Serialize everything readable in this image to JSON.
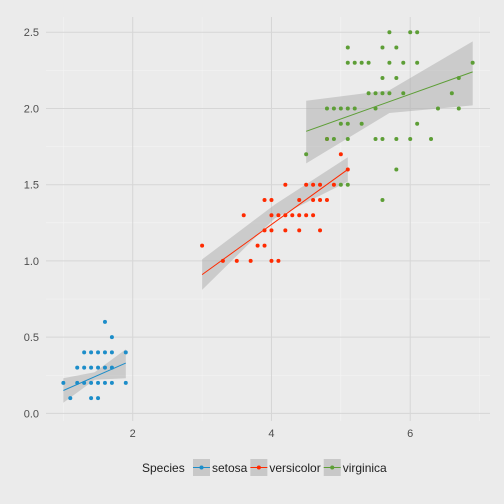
{
  "chart_data": {
    "type": "scatter",
    "xlim": [
      0.75,
      7.15
    ],
    "ylim": [
      -0.05,
      2.6
    ],
    "x_ticks": [
      2,
      4,
      6
    ],
    "x_tick_labels": [
      "2",
      "4",
      "6"
    ],
    "y_ticks": [
      0.0,
      0.5,
      1.0,
      1.5,
      2.0,
      2.5
    ],
    "y_tick_labels": [
      "0.0",
      "0.5",
      "1.0",
      "1.5",
      "2.0",
      "2.5"
    ],
    "grid": true,
    "legend_position": "bottom",
    "legend_title": "Species",
    "series": [
      {
        "name": "setosa",
        "color": "#1c8dc9",
        "fit": [
          [
            1.0,
            0.15
          ],
          [
            1.9,
            0.33
          ]
        ],
        "band": {
          "x": [
            1.0,
            1.45,
            1.9
          ],
          "lower": [
            0.07,
            0.22,
            0.23
          ],
          "upper": [
            0.23,
            0.27,
            0.42
          ]
        },
        "points": [
          [
            1.0,
            0.2
          ],
          [
            1.1,
            0.1
          ],
          [
            1.2,
            0.2
          ],
          [
            1.3,
            0.2
          ],
          [
            1.3,
            0.3
          ],
          [
            1.3,
            0.4
          ],
          [
            1.4,
            0.1
          ],
          [
            1.4,
            0.2
          ],
          [
            1.4,
            0.3
          ],
          [
            1.5,
            0.1
          ],
          [
            1.5,
            0.2
          ],
          [
            1.5,
            0.3
          ],
          [
            1.5,
            0.4
          ],
          [
            1.6,
            0.2
          ],
          [
            1.6,
            0.4
          ],
          [
            1.6,
            0.6
          ],
          [
            1.7,
            0.2
          ],
          [
            1.7,
            0.3
          ],
          [
            1.7,
            0.4
          ],
          [
            1.7,
            0.5
          ],
          [
            1.9,
            0.2
          ],
          [
            1.9,
            0.4
          ],
          [
            1.2,
            0.3
          ],
          [
            1.4,
            0.4
          ],
          [
            1.6,
            0.3
          ]
        ]
      },
      {
        "name": "versicolor",
        "color": "#ff2a00",
        "fit": [
          [
            3.0,
            0.91
          ],
          [
            5.1,
            1.6
          ]
        ],
        "band": {
          "x": [
            3.0,
            4.05,
            5.1
          ],
          "lower": [
            0.81,
            1.28,
            1.52
          ],
          "upper": [
            1.01,
            1.37,
            1.68
          ]
        },
        "points": [
          [
            3.0,
            1.1
          ],
          [
            3.3,
            1.0
          ],
          [
            3.5,
            1.0
          ],
          [
            3.6,
            1.3
          ],
          [
            3.7,
            1.0
          ],
          [
            3.8,
            1.1
          ],
          [
            3.9,
            1.1
          ],
          [
            3.9,
            1.2
          ],
          [
            3.9,
            1.4
          ],
          [
            4.0,
            1.0
          ],
          [
            4.0,
            1.2
          ],
          [
            4.0,
            1.3
          ],
          [
            4.1,
            1.0
          ],
          [
            4.1,
            1.3
          ],
          [
            4.2,
            1.2
          ],
          [
            4.2,
            1.3
          ],
          [
            4.2,
            1.5
          ],
          [
            4.3,
            1.3
          ],
          [
            4.4,
            1.2
          ],
          [
            4.4,
            1.3
          ],
          [
            4.4,
            1.4
          ],
          [
            4.5,
            1.3
          ],
          [
            4.5,
            1.5
          ],
          [
            4.6,
            1.3
          ],
          [
            4.6,
            1.4
          ],
          [
            4.6,
            1.5
          ],
          [
            4.7,
            1.2
          ],
          [
            4.7,
            1.4
          ],
          [
            4.7,
            1.5
          ],
          [
            4.8,
            1.4
          ],
          [
            4.8,
            1.8
          ],
          [
            4.9,
            1.5
          ],
          [
            5.0,
            1.7
          ],
          [
            5.1,
            1.6
          ],
          [
            4.0,
            1.4
          ]
        ]
      },
      {
        "name": "virginica",
        "color": "#5d9e36",
        "fit": [
          [
            4.5,
            1.85
          ],
          [
            6.9,
            2.24
          ]
        ],
        "band": {
          "x": [
            4.5,
            5.7,
            6.9
          ],
          "lower": [
            1.64,
            1.97,
            2.02
          ],
          "upper": [
            2.05,
            2.12,
            2.44
          ]
        },
        "points": [
          [
            4.5,
            1.7
          ],
          [
            4.8,
            1.8
          ],
          [
            4.9,
            1.8
          ],
          [
            4.9,
            2.0
          ],
          [
            5.0,
            1.5
          ],
          [
            5.0,
            1.9
          ],
          [
            5.0,
            2.0
          ],
          [
            5.1,
            1.5
          ],
          [
            5.1,
            1.8
          ],
          [
            5.1,
            1.9
          ],
          [
            5.1,
            2.0
          ],
          [
            5.1,
            2.3
          ],
          [
            5.1,
            2.4
          ],
          [
            5.2,
            2.0
          ],
          [
            5.2,
            2.3
          ],
          [
            5.3,
            1.9
          ],
          [
            5.3,
            2.3
          ],
          [
            5.4,
            2.1
          ],
          [
            5.4,
            2.3
          ],
          [
            5.5,
            1.8
          ],
          [
            5.5,
            2.1
          ],
          [
            5.6,
            1.4
          ],
          [
            5.6,
            1.8
          ],
          [
            5.6,
            2.1
          ],
          [
            5.6,
            2.2
          ],
          [
            5.6,
            2.4
          ],
          [
            5.7,
            2.1
          ],
          [
            5.7,
            2.3
          ],
          [
            5.7,
            2.5
          ],
          [
            5.8,
            1.6
          ],
          [
            5.8,
            1.8
          ],
          [
            5.8,
            2.2
          ],
          [
            5.9,
            2.1
          ],
          [
            5.9,
            2.3
          ],
          [
            6.0,
            1.8
          ],
          [
            6.0,
            2.5
          ],
          [
            6.1,
            1.9
          ],
          [
            6.1,
            2.3
          ],
          [
            6.1,
            2.5
          ],
          [
            6.3,
            1.8
          ],
          [
            6.4,
            2.0
          ],
          [
            6.6,
            2.1
          ],
          [
            6.7,
            2.0
          ],
          [
            6.7,
            2.2
          ],
          [
            6.9,
            2.3
          ],
          [
            5.5,
            2.0
          ],
          [
            5.8,
            2.4
          ],
          [
            4.8,
            2.0
          ]
        ]
      }
    ]
  }
}
